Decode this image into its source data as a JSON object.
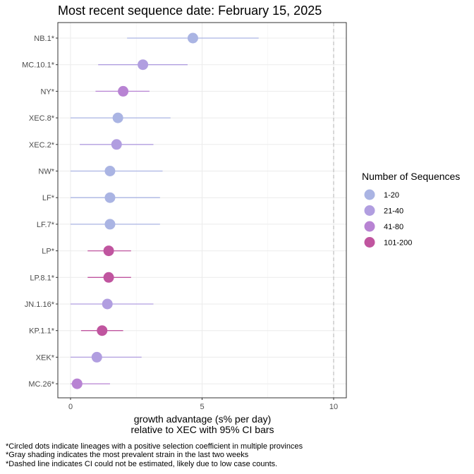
{
  "chart_data": {
    "type": "scatter",
    "title": "Most recent sequence date: February 15, 2025",
    "xlabel_line1": "growth advantage (s% per day)",
    "xlabel_line2": "relative to  XEC  with 95% CI bars",
    "xlim": [
      -0.5,
      10.5
    ],
    "xticks": [
      0,
      5,
      10
    ],
    "x_tick_labels": [
      "0",
      "5",
      "10"
    ],
    "grid": true,
    "dashed_reference_x": 10,
    "legend_placement": "right",
    "legend": {
      "title": "Number of Sequences",
      "entries": [
        {
          "label": "1-20",
          "color": "#aab4e3"
        },
        {
          "label": "21-40",
          "color": "#b19ee0"
        },
        {
          "label": "41-80",
          "color": "#b883d3"
        },
        {
          "label": "101-200",
          "color": "#c0559f"
        }
      ]
    },
    "lineages": [
      {
        "name": "NB.1*",
        "value": 4.65,
        "ci": [
          2.15,
          7.15
        ],
        "group": "1-20"
      },
      {
        "name": "MC.10.1*",
        "value": 2.75,
        "ci": [
          1.05,
          4.45
        ],
        "group": "21-40"
      },
      {
        "name": "NY*",
        "value": 2.0,
        "ci": [
          0.95,
          3.0
        ],
        "group": "41-80"
      },
      {
        "name": "XEC.8*",
        "value": 1.8,
        "ci": [
          0.0,
          3.8
        ],
        "group": "1-20"
      },
      {
        "name": "XEC.2*",
        "value": 1.75,
        "ci": [
          0.35,
          3.15
        ],
        "group": "21-40"
      },
      {
        "name": "NW*",
        "value": 1.5,
        "ci": [
          0.0,
          3.5
        ],
        "group": "1-20"
      },
      {
        "name": "LF*",
        "value": 1.5,
        "ci": [
          0.0,
          3.4
        ],
        "group": "1-20"
      },
      {
        "name": "LF.7*",
        "value": 1.5,
        "ci": [
          0.0,
          3.4
        ],
        "group": "1-20"
      },
      {
        "name": "LP*",
        "value": 1.45,
        "ci": [
          0.65,
          2.3
        ],
        "group": "101-200"
      },
      {
        "name": "LP.8.1*",
        "value": 1.45,
        "ci": [
          0.65,
          2.3
        ],
        "group": "101-200"
      },
      {
        "name": "JN.1.16*",
        "value": 1.4,
        "ci": [
          0.0,
          3.15
        ],
        "group": "21-40"
      },
      {
        "name": "KP.1.1*",
        "value": 1.2,
        "ci": [
          0.4,
          2.0
        ],
        "group": "101-200"
      },
      {
        "name": "XEK*",
        "value": 1.0,
        "ci": [
          0.0,
          2.7
        ],
        "group": "21-40"
      },
      {
        "name": "MC.26*",
        "value": 0.25,
        "ci": [
          0.0,
          1.5
        ],
        "group": "41-80"
      }
    ]
  },
  "footnotes": [
    "*Circled dots indicate lineages with a positive selection coefficient in multiple provinces",
    "*Gray shading indicates the most prevalent strain in the last two weeks",
    "*Dashed line indicates CI could not be estimated, likely due to low case counts."
  ]
}
